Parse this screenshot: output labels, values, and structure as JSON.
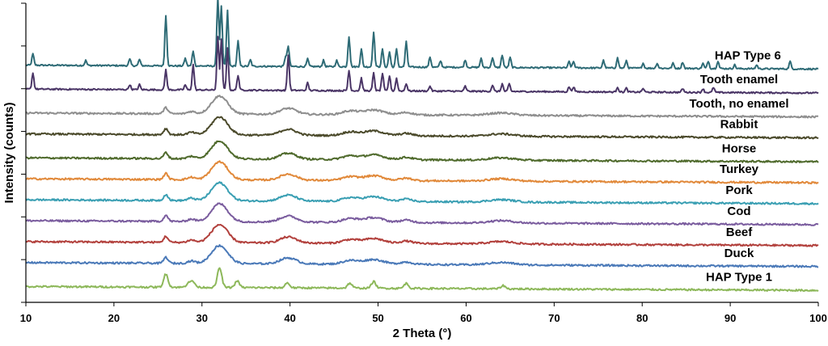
{
  "chart_data": {
    "type": "line",
    "xlabel": "2 Theta  (°)",
    "ylabel": "Intensity  (counts)",
    "xlim": [
      10,
      100
    ],
    "xticks": [
      10,
      20,
      30,
      40,
      50,
      60,
      70,
      80,
      90,
      100
    ],
    "xtick_labels": [
      "10",
      "20",
      "30",
      "40",
      "50",
      "60",
      "70",
      "80",
      "90",
      "100"
    ],
    "ytick_labels_shown": false,
    "offset_stacked": true,
    "series": [
      {
        "name": "HAP Type 6",
        "color": "#2e6b76",
        "crystallinity": "high",
        "label_x": 92,
        "baseline": 78,
        "peaks": [
          [
            10.8,
            9
          ],
          [
            16.8,
            4
          ],
          [
            21.8,
            5
          ],
          [
            22.9,
            5
          ],
          [
            25.9,
            40
          ],
          [
            28.1,
            6
          ],
          [
            29.0,
            12
          ],
          [
            31.8,
            55
          ],
          [
            32.2,
            48
          ],
          [
            32.9,
            44
          ],
          [
            34.1,
            20
          ],
          [
            35.5,
            5
          ],
          [
            39.5,
            8
          ],
          [
            39.8,
            16
          ],
          [
            42.0,
            6
          ],
          [
            43.8,
            5
          ],
          [
            45.3,
            5
          ],
          [
            46.7,
            24
          ],
          [
            48.1,
            14
          ],
          [
            49.5,
            28
          ],
          [
            50.5,
            14
          ],
          [
            51.3,
            12
          ],
          [
            52.1,
            14
          ],
          [
            53.2,
            20
          ],
          [
            55.9,
            8
          ],
          [
            57.1,
            5
          ],
          [
            59.9,
            6
          ],
          [
            61.7,
            7
          ],
          [
            63.0,
            8
          ],
          [
            64.1,
            10
          ],
          [
            65.0,
            8
          ],
          [
            71.7,
            5
          ],
          [
            72.2,
            5
          ],
          [
            75.6,
            6
          ],
          [
            77.2,
            8
          ],
          [
            78.2,
            6
          ],
          [
            80.1,
            4
          ],
          [
            81.7,
            4
          ],
          [
            83.5,
            4
          ],
          [
            84.6,
            5
          ],
          [
            86.9,
            4
          ],
          [
            87.5,
            6
          ],
          [
            88.6,
            6
          ],
          [
            90.5,
            3
          ],
          [
            93.0,
            3
          ],
          [
            96.8,
            6
          ]
        ]
      },
      {
        "name": "Tooth enamel",
        "color": "#4a3566",
        "crystallinity": "high",
        "label_x": 91,
        "baseline": 70,
        "peaks": [
          [
            10.8,
            13
          ],
          [
            21.8,
            4
          ],
          [
            22.9,
            4
          ],
          [
            25.9,
            16
          ],
          [
            28.1,
            4
          ],
          [
            29.0,
            20
          ],
          [
            31.8,
            42
          ],
          [
            32.2,
            40
          ],
          [
            32.9,
            34
          ],
          [
            34.1,
            12
          ],
          [
            39.8,
            28
          ],
          [
            42.0,
            6
          ],
          [
            46.7,
            16
          ],
          [
            48.1,
            10
          ],
          [
            49.5,
            14
          ],
          [
            50.5,
            14
          ],
          [
            51.3,
            12
          ],
          [
            52.1,
            10
          ],
          [
            53.2,
            6
          ],
          [
            55.9,
            4
          ],
          [
            59.9,
            4
          ],
          [
            63.0,
            5
          ],
          [
            64.1,
            6
          ],
          [
            64.9,
            6
          ],
          [
            71.7,
            4
          ],
          [
            72.2,
            4
          ],
          [
            77.2,
            4
          ],
          [
            78.2,
            3
          ],
          [
            80.1,
            3
          ],
          [
            84.6,
            3
          ],
          [
            86.9,
            3
          ],
          [
            88.1,
            4
          ]
        ]
      },
      {
        "name": "Tooth, no enamel",
        "color": "#8e8e8e",
        "crystallinity": "low",
        "label_x": 91,
        "baseline": 62
      },
      {
        "name": "Rabbit",
        "color": "#4b4a2b",
        "crystallinity": "low",
        "label_x": 91,
        "baseline": 55
      },
      {
        "name": "Horse",
        "color": "#4f6a2c",
        "crystallinity": "low",
        "label_x": 91,
        "baseline": 47
      },
      {
        "name": "Turkey",
        "color": "#e1893a",
        "crystallinity": "low",
        "label_x": 91,
        "baseline": 40
      },
      {
        "name": "Pork",
        "color": "#3a9fb3",
        "crystallinity": "low",
        "label_x": 91,
        "baseline": 33
      },
      {
        "name": "Cod",
        "color": "#7a5c9e",
        "crystallinity": "low",
        "label_x": 91,
        "baseline": 26
      },
      {
        "name": "Beef",
        "color": "#b2403c",
        "crystallinity": "low",
        "label_x": 91,
        "baseline": 19
      },
      {
        "name": "Duck",
        "color": "#4a79b8",
        "crystallinity": "low",
        "label_x": 91,
        "baseline": 12
      },
      {
        "name": "HAP Type 1",
        "color": "#8db85a",
        "crystallinity": "low",
        "label_x": 91,
        "baseline": 4,
        "peaks": [
          [
            25.9,
            8
          ],
          [
            28.5,
            3
          ],
          [
            29.0,
            3
          ],
          [
            32.0,
            12
          ],
          [
            34.0,
            4
          ],
          [
            39.7,
            3
          ],
          [
            46.8,
            3
          ],
          [
            49.5,
            4
          ],
          [
            53.2,
            3
          ],
          [
            64.2,
            2
          ]
        ]
      }
    ],
    "grid": false,
    "legend": "none"
  }
}
